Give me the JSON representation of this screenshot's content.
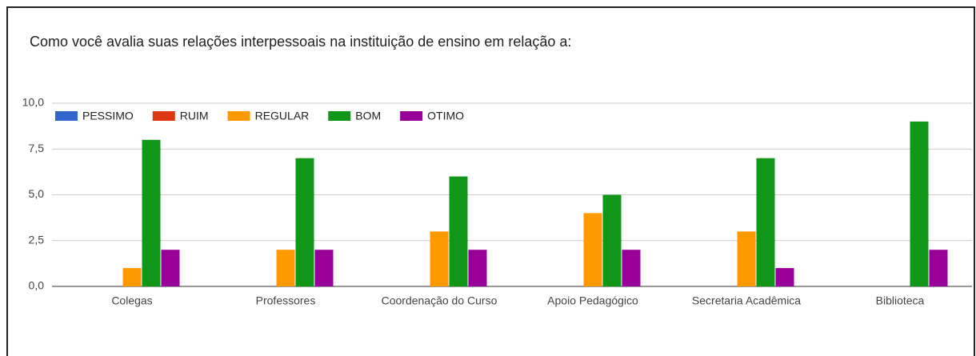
{
  "chart_data": {
    "type": "bar",
    "title": "Como você avalia suas relações interpessoais na instituição de ensino em  relação a:",
    "categories": [
      "Colegas",
      "Professores",
      "Coordenação do Curso",
      "Apoio Pedagógico",
      "Secretaria Acadêmica",
      "Biblioteca"
    ],
    "series": [
      {
        "name": "PESSIMO",
        "color": "#3366cc",
        "values": [
          0,
          0,
          0,
          0,
          0,
          0
        ]
      },
      {
        "name": "RUIM",
        "color": "#dc3912",
        "values": [
          0,
          0,
          0,
          0,
          0,
          0
        ]
      },
      {
        "name": "REGULAR",
        "color": "#ff9900",
        "values": [
          1,
          2,
          3,
          4,
          3,
          0
        ]
      },
      {
        "name": "BOM",
        "color": "#109618",
        "values": [
          8,
          7,
          6,
          5,
          7,
          9
        ]
      },
      {
        "name": "OTIMO",
        "color": "#990099",
        "values": [
          2,
          2,
          2,
          2,
          1,
          2
        ]
      }
    ],
    "ylim": [
      0,
      10
    ],
    "yticks": [
      {
        "value": 0,
        "label": "0,0"
      },
      {
        "value": 2.5,
        "label": "2,5"
      },
      {
        "value": 5,
        "label": "5,0"
      },
      {
        "value": 7.5,
        "label": "7,5"
      },
      {
        "value": 10,
        "label": "10,0"
      }
    ],
    "grid": true,
    "legend": "top"
  }
}
